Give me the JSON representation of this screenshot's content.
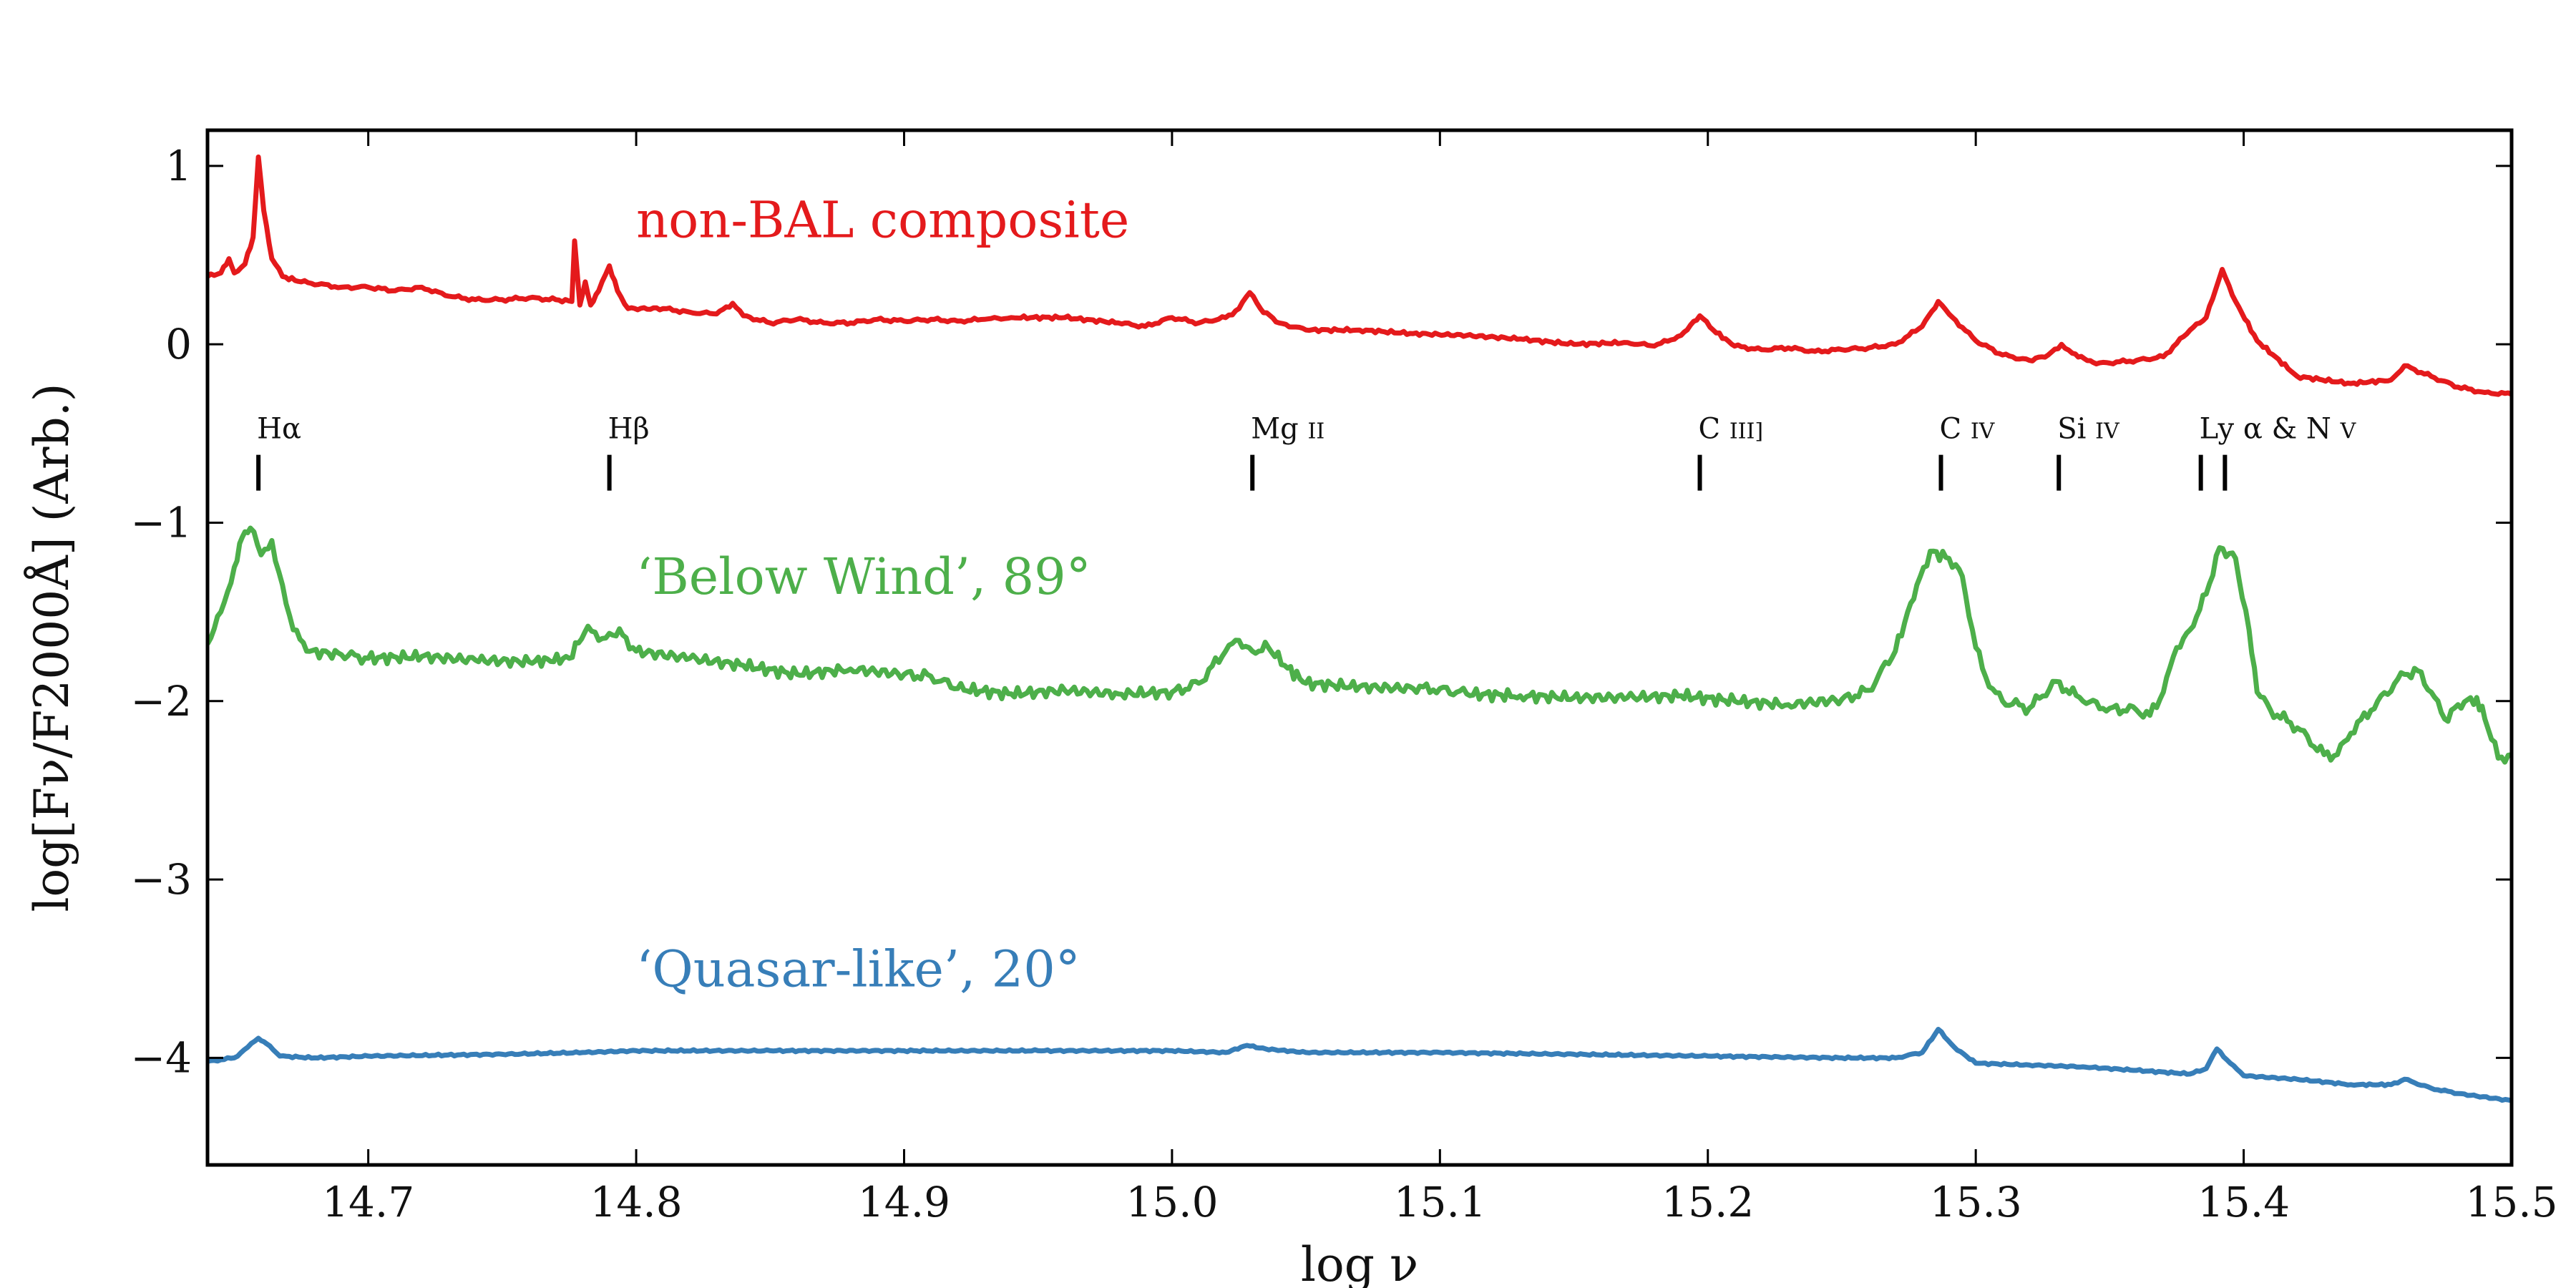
{
  "chart_data": {
    "type": "line",
    "title": "",
    "xlabel": "log ν",
    "ylabel": "log[Fν/F2000Å] (Arb.)",
    "xlim": [
      14.64,
      15.5
    ],
    "ylim": [
      -4.6,
      1.2
    ],
    "x_ticks": [
      {
        "value": 14.7,
        "label": "14.7"
      },
      {
        "value": 14.8,
        "label": "14.8"
      },
      {
        "value": 14.9,
        "label": "14.9"
      },
      {
        "value": 15.0,
        "label": "15.0"
      },
      {
        "value": 15.1,
        "label": "15.1"
      },
      {
        "value": 15.2,
        "label": "15.2"
      },
      {
        "value": 15.3,
        "label": "15.3"
      },
      {
        "value": 15.4,
        "label": "15.4"
      },
      {
        "value": 15.5,
        "label": "15.5"
      }
    ],
    "y_ticks": [
      {
        "value": 1,
        "label": "1"
      },
      {
        "value": 0,
        "label": "0"
      },
      {
        "value": -1,
        "label": "−1"
      },
      {
        "value": -2,
        "label": "−2"
      },
      {
        "value": -3,
        "label": "−3"
      },
      {
        "value": -4,
        "label": "−4"
      }
    ],
    "grid": false,
    "series": [
      {
        "name": "non-BAL composite",
        "color": "#e41a1c",
        "label_at": {
          "x": 14.8,
          "y": 0.6
        },
        "points": [
          [
            14.64,
            0.38
          ],
          [
            14.645,
            0.4
          ],
          [
            14.648,
            0.48
          ],
          [
            14.65,
            0.4
          ],
          [
            14.654,
            0.45
          ],
          [
            14.657,
            0.6
          ],
          [
            14.659,
            1.05
          ],
          [
            14.661,
            0.75
          ],
          [
            14.664,
            0.48
          ],
          [
            14.668,
            0.38
          ],
          [
            14.675,
            0.35
          ],
          [
            14.69,
            0.32
          ],
          [
            14.7,
            0.32
          ],
          [
            14.71,
            0.3
          ],
          [
            14.72,
            0.32
          ],
          [
            14.73,
            0.27
          ],
          [
            14.74,
            0.25
          ],
          [
            14.75,
            0.25
          ],
          [
            14.76,
            0.26
          ],
          [
            14.77,
            0.25
          ],
          [
            14.776,
            0.24
          ],
          [
            14.777,
            0.58
          ],
          [
            14.779,
            0.22
          ],
          [
            14.781,
            0.35
          ],
          [
            14.783,
            0.22
          ],
          [
            14.786,
            0.3
          ],
          [
            14.79,
            0.44
          ],
          [
            14.793,
            0.3
          ],
          [
            14.797,
            0.2
          ],
          [
            14.81,
            0.2
          ],
          [
            14.82,
            0.18
          ],
          [
            14.83,
            0.17
          ],
          [
            14.836,
            0.23
          ],
          [
            14.84,
            0.16
          ],
          [
            14.85,
            0.12
          ],
          [
            14.86,
            0.14
          ],
          [
            14.87,
            0.12
          ],
          [
            14.88,
            0.12
          ],
          [
            14.89,
            0.14
          ],
          [
            14.9,
            0.13
          ],
          [
            14.91,
            0.14
          ],
          [
            14.92,
            0.13
          ],
          [
            14.93,
            0.14
          ],
          [
            14.94,
            0.15
          ],
          [
            14.96,
            0.15
          ],
          [
            14.98,
            0.12
          ],
          [
            14.99,
            0.1
          ],
          [
            15.0,
            0.15
          ],
          [
            15.01,
            0.12
          ],
          [
            15.02,
            0.15
          ],
          [
            15.025,
            0.2
          ],
          [
            15.029,
            0.29
          ],
          [
            15.033,
            0.2
          ],
          [
            15.04,
            0.12
          ],
          [
            15.05,
            0.08
          ],
          [
            15.07,
            0.08
          ],
          [
            15.09,
            0.06
          ],
          [
            15.11,
            0.05
          ],
          [
            15.13,
            0.03
          ],
          [
            15.15,
            0.0
          ],
          [
            15.17,
            0.01
          ],
          [
            15.18,
            -0.01
          ],
          [
            15.19,
            0.05
          ],
          [
            15.197,
            0.16
          ],
          [
            15.202,
            0.08
          ],
          [
            15.21,
            -0.01
          ],
          [
            15.22,
            -0.03
          ],
          [
            15.23,
            -0.02
          ],
          [
            15.24,
            -0.04
          ],
          [
            15.25,
            -0.03
          ],
          [
            15.26,
            -0.02
          ],
          [
            15.27,
            0.0
          ],
          [
            15.28,
            0.1
          ],
          [
            15.286,
            0.24
          ],
          [
            15.29,
            0.17
          ],
          [
            15.3,
            0.02
          ],
          [
            15.31,
            -0.06
          ],
          [
            15.32,
            -0.09
          ],
          [
            15.327,
            -0.06
          ],
          [
            15.332,
            0.0
          ],
          [
            15.336,
            -0.05
          ],
          [
            15.345,
            -0.11
          ],
          [
            15.36,
            -0.09
          ],
          [
            15.37,
            -0.07
          ],
          [
            15.38,
            0.08
          ],
          [
            15.386,
            0.15
          ],
          [
            15.392,
            0.42
          ],
          [
            15.397,
            0.24
          ],
          [
            15.405,
            0.02
          ],
          [
            15.42,
            -0.18
          ],
          [
            15.44,
            -0.22
          ],
          [
            15.455,
            -0.2
          ],
          [
            15.46,
            -0.12
          ],
          [
            15.47,
            -0.18
          ],
          [
            15.48,
            -0.24
          ],
          [
            15.49,
            -0.27
          ],
          [
            15.5,
            -0.28
          ]
        ]
      },
      {
        "name": "‘Below Wind’, 89°",
        "color": "#4daf4a",
        "label_at": {
          "x": 14.8,
          "y": -1.4
        },
        "points": [
          [
            14.64,
            -1.68
          ],
          [
            14.645,
            -1.5
          ],
          [
            14.65,
            -1.25
          ],
          [
            14.653,
            -1.08
          ],
          [
            14.656,
            -1.03
          ],
          [
            14.66,
            -1.18
          ],
          [
            14.664,
            -1.1
          ],
          [
            14.668,
            -1.35
          ],
          [
            14.672,
            -1.6
          ],
          [
            14.677,
            -1.72
          ],
          [
            14.69,
            -1.74
          ],
          [
            14.7,
            -1.76
          ],
          [
            14.72,
            -1.75
          ],
          [
            14.74,
            -1.77
          ],
          [
            14.76,
            -1.78
          ],
          [
            14.775,
            -1.76
          ],
          [
            14.782,
            -1.58
          ],
          [
            14.786,
            -1.66
          ],
          [
            14.79,
            -1.62
          ],
          [
            14.795,
            -1.63
          ],
          [
            14.8,
            -1.72
          ],
          [
            14.82,
            -1.76
          ],
          [
            14.84,
            -1.8
          ],
          [
            14.86,
            -1.85
          ],
          [
            14.88,
            -1.82
          ],
          [
            14.9,
            -1.85
          ],
          [
            14.91,
            -1.86
          ],
          [
            14.92,
            -1.93
          ],
          [
            14.94,
            -1.96
          ],
          [
            14.96,
            -1.94
          ],
          [
            14.98,
            -1.96
          ],
          [
            15.0,
            -1.95
          ],
          [
            15.01,
            -1.9
          ],
          [
            15.02,
            -1.72
          ],
          [
            15.025,
            -1.66
          ],
          [
            15.03,
            -1.72
          ],
          [
            15.036,
            -1.7
          ],
          [
            15.042,
            -1.8
          ],
          [
            15.05,
            -1.9
          ],
          [
            15.07,
            -1.92
          ],
          [
            15.09,
            -1.93
          ],
          [
            15.1,
            -1.93
          ],
          [
            15.11,
            -1.96
          ],
          [
            15.13,
            -1.97
          ],
          [
            15.15,
            -1.98
          ],
          [
            15.17,
            -1.98
          ],
          [
            15.19,
            -1.97
          ],
          [
            15.21,
            -2.0
          ],
          [
            15.23,
            -2.02
          ],
          [
            15.25,
            -1.99
          ],
          [
            15.26,
            -1.94
          ],
          [
            15.27,
            -1.72
          ],
          [
            15.278,
            -1.35
          ],
          [
            15.283,
            -1.16
          ],
          [
            15.29,
            -1.2
          ],
          [
            15.295,
            -1.3
          ],
          [
            15.3,
            -1.7
          ],
          [
            15.305,
            -1.92
          ],
          [
            15.31,
            -2.0
          ],
          [
            15.32,
            -2.04
          ],
          [
            15.33,
            -1.89
          ],
          [
            15.34,
            -2.0
          ],
          [
            15.35,
            -2.04
          ],
          [
            15.36,
            -2.05
          ],
          [
            15.365,
            -2.08
          ],
          [
            15.37,
            -1.95
          ],
          [
            15.375,
            -1.7
          ],
          [
            15.38,
            -1.6
          ],
          [
            15.386,
            -1.4
          ],
          [
            15.391,
            -1.14
          ],
          [
            15.397,
            -1.2
          ],
          [
            15.402,
            -1.6
          ],
          [
            15.405,
            -1.95
          ],
          [
            15.41,
            -2.05
          ],
          [
            15.42,
            -2.15
          ],
          [
            15.43,
            -2.3
          ],
          [
            15.435,
            -2.3
          ],
          [
            15.44,
            -2.18
          ],
          [
            15.45,
            -2.0
          ],
          [
            15.46,
            -1.85
          ],
          [
            15.465,
            -1.83
          ],
          [
            15.47,
            -1.95
          ],
          [
            15.475,
            -2.1
          ],
          [
            15.48,
            -2.02
          ],
          [
            15.487,
            -1.98
          ],
          [
            15.49,
            -2.1
          ],
          [
            15.495,
            -2.32
          ],
          [
            15.5,
            -2.3
          ]
        ]
      },
      {
        "name": "‘Quasar-like’, 20°",
        "color": "#377eb8",
        "label_at": {
          "x": 14.8,
          "y": -3.6
        },
        "points": [
          [
            14.64,
            -4.02
          ],
          [
            14.65,
            -4.0
          ],
          [
            14.655,
            -3.94
          ],
          [
            14.659,
            -3.89
          ],
          [
            14.662,
            -3.92
          ],
          [
            14.667,
            -3.99
          ],
          [
            14.68,
            -4.0
          ],
          [
            14.7,
            -3.99
          ],
          [
            14.75,
            -3.98
          ],
          [
            14.78,
            -3.97
          ],
          [
            14.8,
            -3.96
          ],
          [
            14.85,
            -3.96
          ],
          [
            14.9,
            -3.96
          ],
          [
            14.95,
            -3.96
          ],
          [
            15.0,
            -3.96
          ],
          [
            15.02,
            -3.97
          ],
          [
            15.028,
            -3.93
          ],
          [
            15.035,
            -3.95
          ],
          [
            15.05,
            -3.97
          ],
          [
            15.1,
            -3.97
          ],
          [
            15.15,
            -3.98
          ],
          [
            15.2,
            -3.99
          ],
          [
            15.25,
            -4.0
          ],
          [
            15.27,
            -4.0
          ],
          [
            15.28,
            -3.97
          ],
          [
            15.286,
            -3.84
          ],
          [
            15.292,
            -3.94
          ],
          [
            15.3,
            -4.03
          ],
          [
            15.32,
            -4.04
          ],
          [
            15.34,
            -4.05
          ],
          [
            15.36,
            -4.07
          ],
          [
            15.38,
            -4.09
          ],
          [
            15.386,
            -4.06
          ],
          [
            15.39,
            -3.95
          ],
          [
            15.395,
            -4.03
          ],
          [
            15.4,
            -4.1
          ],
          [
            15.42,
            -4.12
          ],
          [
            15.44,
            -4.15
          ],
          [
            15.455,
            -4.15
          ],
          [
            15.46,
            -4.12
          ],
          [
            15.47,
            -4.17
          ],
          [
            15.48,
            -4.2
          ],
          [
            15.5,
            -4.24
          ]
        ]
      }
    ],
    "line_markers": [
      {
        "name": "H-alpha",
        "ticks": [
          14.659
        ],
        "label_main": "Hα",
        "label_sc": ""
      },
      {
        "name": "H-beta",
        "ticks": [
          14.79
        ],
        "label_main": "Hβ",
        "label_sc": ""
      },
      {
        "name": "Mg-II",
        "ticks": [
          15.03
        ],
        "label_main": "Mg ",
        "label_sc": "II"
      },
      {
        "name": "C-III",
        "ticks": [
          15.197
        ],
        "label_main": "C ",
        "label_sc": "III]"
      },
      {
        "name": "C-IV",
        "ticks": [
          15.287
        ],
        "label_main": "C ",
        "label_sc": "IV"
      },
      {
        "name": "Si-IV",
        "ticks": [
          15.331
        ],
        "label_main": "Si ",
        "label_sc": "IV"
      },
      {
        "name": "Ly-alpha-N-V",
        "ticks": [
          15.384,
          15.393
        ],
        "label_main": "Ly α & N ",
        "label_sc": "V"
      }
    ],
    "marker_y": -0.72
  }
}
